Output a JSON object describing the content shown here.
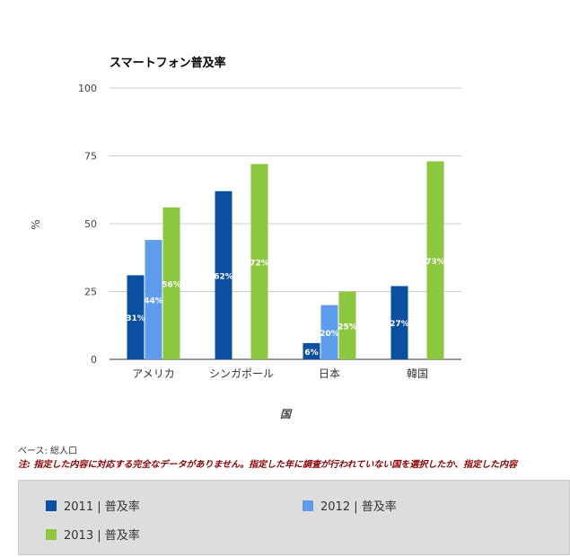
{
  "chart_data": {
    "type": "bar",
    "title": "スマートフォン普及率",
    "xlabel": "国",
    "ylabel": "%",
    "ylim": [
      0,
      100
    ],
    "yticks": [
      0,
      25,
      50,
      75,
      100
    ],
    "categories": [
      "アメリカ",
      "シンガポール",
      "日本",
      "韓国"
    ],
    "series": [
      {
        "name": "2011 | 普及率",
        "color": "#0b4fa0",
        "values": [
          31,
          62,
          6,
          27
        ]
      },
      {
        "name": "2012 | 普及率",
        "color": "#5d9cec",
        "values": [
          44,
          null,
          20,
          null
        ]
      },
      {
        "name": "2013 | 普及率",
        "color": "#8dc63f",
        "values": [
          56,
          72,
          25,
          73
        ]
      }
    ],
    "data_labels": [
      [
        "31%",
        "44%",
        "56%"
      ],
      [
        "62%",
        null,
        "72%"
      ],
      [
        "6%",
        "20%",
        "25%"
      ],
      [
        "27%",
        null,
        "73%"
      ]
    ],
    "grid": true,
    "legend_position": "bottom"
  },
  "notes": {
    "base": "ベース: 総人口",
    "warning": "注: 指定した内容に対応する完全なデータがありません。指定した年に調査が行われていない国を選択したか、指定した内容"
  }
}
